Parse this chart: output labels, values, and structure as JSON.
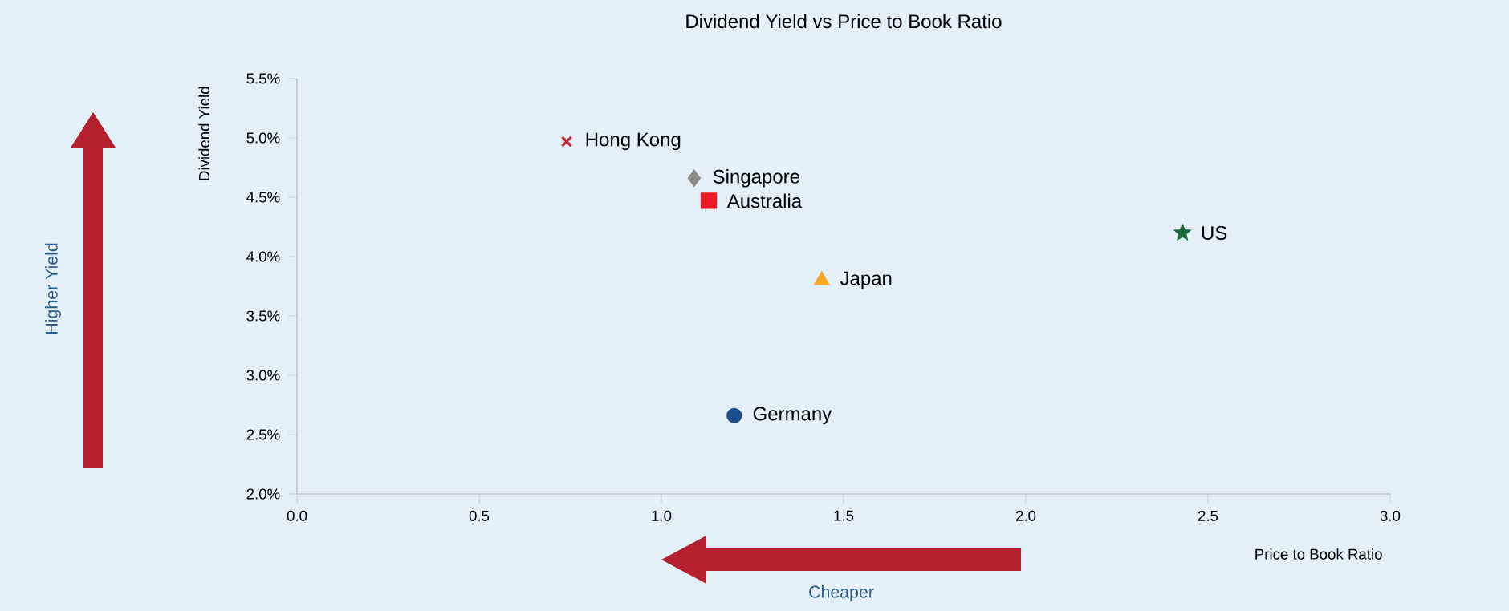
{
  "chart_data": {
    "type": "scatter",
    "title": "Dividend Yield vs Price to Book Ratio",
    "xlabel": "Price to Book Ratio",
    "ylabel": "Dividend Yield",
    "annotations": [
      "Higher Yield",
      "Cheaper"
    ],
    "series": [
      {
        "name": "Hong Kong",
        "color": "#c0272d",
        "marker": "cross",
        "x": [
          0.74
        ],
        "values": [
          4.97
        ]
      },
      {
        "name": "Singapore",
        "color": "#8c8c8c",
        "marker": "diamond",
        "x": [
          1.09
        ],
        "values": [
          4.66
        ]
      },
      {
        "name": "Australia",
        "color": "#ed1c24",
        "marker": "square",
        "x": [
          1.13
        ],
        "values": [
          4.47
        ]
      },
      {
        "name": "Japan",
        "color": "#f5a623",
        "marker": "triangle",
        "x": [
          1.44
        ],
        "values": [
          3.8
        ]
      },
      {
        "name": "US",
        "color": "#1e6b3a",
        "marker": "star",
        "x": [
          2.43
        ],
        "values": [
          4.2
        ]
      },
      {
        "name": "Germany",
        "color": "#1f4e8c",
        "marker": "circle",
        "x": [
          1.2
        ],
        "values": [
          2.66
        ]
      }
    ],
    "xlim": [
      0,
      3
    ],
    "ylim": [
      2,
      5.5
    ],
    "xticks": [
      {
        "value": 0,
        "label": "0.0"
      },
      {
        "value": 0.5,
        "label": "0.5"
      },
      {
        "value": 1,
        "label": "1.0"
      },
      {
        "value": 1.5,
        "label": "1.5"
      },
      {
        "value": 2,
        "label": "2.0"
      },
      {
        "value": 2.5,
        "label": "2.5"
      },
      {
        "value": 3,
        "label": "3.0"
      }
    ],
    "yticks": [
      {
        "value": 2,
        "label": "2.0%"
      },
      {
        "value": 2.5,
        "label": "2.5%"
      },
      {
        "value": 3,
        "label": "3.0%"
      },
      {
        "value": 3.5,
        "label": "3.5%"
      },
      {
        "value": 4,
        "label": "4.0%"
      },
      {
        "value": 4.5,
        "label": "4.5%"
      },
      {
        "value": 5,
        "label": "5.0%"
      },
      {
        "value": 5.5,
        "label": "5.5%"
      }
    ],
    "grid": false,
    "legend": false
  }
}
